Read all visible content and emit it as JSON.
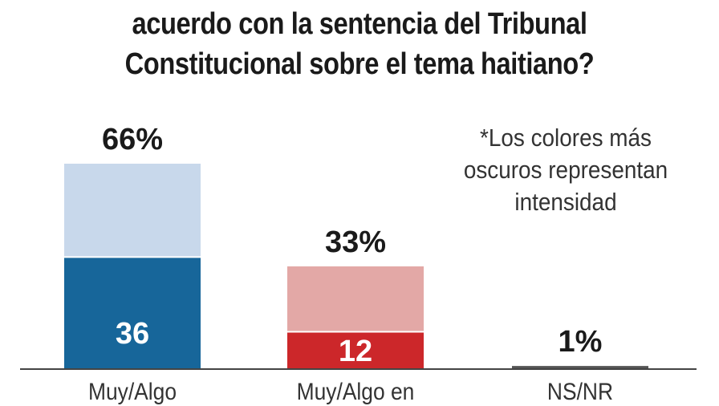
{
  "title_lines": [
    "acuerdo con la sentencia del Tribunal",
    "Constitucional sobre el tema haitiano?"
  ],
  "note": [
    "*Los colores más",
    "oscuros representan",
    "intensidad"
  ],
  "chart_data": {
    "type": "bar",
    "stacked": true,
    "categories": [
      "Muy/Algo",
      "Muy/Algo en",
      "NS/NR"
    ],
    "totals": [
      66,
      33,
      1
    ],
    "total_labels": [
      "66%",
      "33%",
      "1%"
    ],
    "intense_values": [
      36,
      12,
      null
    ],
    "intense_labels": [
      "36",
      "12",
      ""
    ],
    "ylim": [
      0,
      66
    ],
    "colors": {
      "light": [
        "#c8d8eb",
        "#e3a8a6",
        "#555555"
      ],
      "dark": [
        "#17669a",
        "#cc272a",
        "#555555"
      ],
      "axis": "#444444"
    }
  }
}
